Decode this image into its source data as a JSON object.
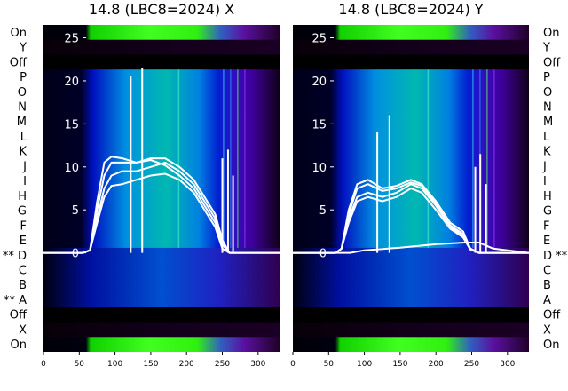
{
  "chart_data": [
    {
      "type": "heatmap",
      "title": "14.8 (LBC8=2024) X",
      "overlay": "line",
      "x_ticks": [
        0,
        50,
        100,
        150,
        200,
        250,
        300
      ],
      "xlim": [
        0,
        330
      ],
      "y_ticks": [
        0,
        5,
        10,
        15,
        20,
        25
      ],
      "ylim": [
        -11.5,
        26.5
      ],
      "row_labels": [
        "On",
        "Y",
        "Off",
        "P",
        "O",
        "N",
        "M",
        "L",
        "K",
        "J",
        "I",
        "H",
        "G",
        "F",
        "E",
        "** D",
        "C",
        "B",
        "** A",
        "Off",
        "X",
        "On"
      ],
      "series": [
        {
          "values": [
            [
              0,
              0
            ],
            [
              55,
              0
            ],
            [
              65,
              0.3
            ],
            [
              75,
              4
            ],
            [
              85,
              7.5
            ],
            [
              95,
              9
            ],
            [
              110,
              9.5
            ],
            [
              130,
              9.5
            ],
            [
              150,
              10
            ],
            [
              170,
              10.5
            ],
            [
              190,
              9.5
            ],
            [
              210,
              8
            ],
            [
              225,
              6
            ],
            [
              240,
              4
            ],
            [
              250,
              1
            ],
            [
              260,
              0
            ],
            [
              330,
              0
            ]
          ]
        },
        {
          "values": [
            [
              0,
              0
            ],
            [
              55,
              0
            ],
            [
              65,
              0.3
            ],
            [
              75,
              5
            ],
            [
              85,
              9
            ],
            [
              95,
              10.5
            ],
            [
              110,
              10.5
            ],
            [
              130,
              10.5
            ],
            [
              150,
              11
            ],
            [
              170,
              11
            ],
            [
              190,
              10
            ],
            [
              210,
              8.5
            ],
            [
              225,
              6.5
            ],
            [
              240,
              4.5
            ],
            [
              250,
              1.5
            ],
            [
              260,
              0
            ],
            [
              330,
              0
            ]
          ]
        },
        {
          "values": [
            [
              0,
              0
            ],
            [
              55,
              0
            ],
            [
              65,
              0.3
            ],
            [
              75,
              6
            ],
            [
              85,
              10.5
            ],
            [
              95,
              11.2
            ],
            [
              110,
              11
            ],
            [
              130,
              10.5
            ],
            [
              150,
              10.8
            ],
            [
              170,
              10.2
            ],
            [
              190,
              9
            ],
            [
              210,
              7.5
            ],
            [
              225,
              5.5
            ],
            [
              240,
              3.5
            ],
            [
              250,
              1
            ],
            [
              260,
              0
            ],
            [
              330,
              0
            ]
          ]
        },
        {
          "values": [
            [
              0,
              0
            ],
            [
              55,
              0
            ],
            [
              65,
              0.3
            ],
            [
              75,
              3.5
            ],
            [
              85,
              6.5
            ],
            [
              95,
              7.8
            ],
            [
              110,
              8
            ],
            [
              130,
              8.5
            ],
            [
              150,
              9
            ],
            [
              170,
              9.2
            ],
            [
              190,
              8.5
            ],
            [
              210,
              7
            ],
            [
              225,
              5
            ],
            [
              240,
              3
            ],
            [
              250,
              0.5
            ],
            [
              260,
              0
            ],
            [
              330,
              0
            ]
          ]
        }
      ]
    },
    {
      "type": "heatmap",
      "title": "14.8 (LBC8=2024) Y",
      "overlay": "line",
      "x_ticks": [
        0,
        50,
        100,
        150,
        200,
        250,
        300
      ],
      "xlim": [
        0,
        330
      ],
      "y_ticks": [
        0,
        5,
        10,
        15,
        20,
        25
      ],
      "ylim": [
        -11.5,
        26.5
      ],
      "row_labels": [
        "On",
        "Y",
        "Off",
        "P",
        "O",
        "N",
        "M",
        "L",
        "K",
        "J",
        "I",
        "H",
        "G",
        "F",
        "E",
        "D **",
        "C",
        "B",
        "A",
        "Off",
        "X",
        "On"
      ],
      "series": [
        {
          "values": [
            [
              0,
              0
            ],
            [
              60,
              0
            ],
            [
              68,
              0.5
            ],
            [
              78,
              4
            ],
            [
              90,
              6.5
            ],
            [
              105,
              7
            ],
            [
              125,
              6.5
            ],
            [
              145,
              7
            ],
            [
              165,
              8
            ],
            [
              180,
              7.5
            ],
            [
              200,
              5.5
            ],
            [
              220,
              3
            ],
            [
              238,
              2
            ],
            [
              248,
              0.5
            ],
            [
              260,
              0
            ],
            [
              330,
              0
            ]
          ]
        },
        {
          "values": [
            [
              0,
              0
            ],
            [
              60,
              0
            ],
            [
              68,
              0.5
            ],
            [
              78,
              5
            ],
            [
              90,
              8
            ],
            [
              105,
              8.5
            ],
            [
              125,
              7.5
            ],
            [
              145,
              7.8
            ],
            [
              165,
              8.5
            ],
            [
              180,
              8
            ],
            [
              200,
              6
            ],
            [
              220,
              3.5
            ],
            [
              238,
              2.5
            ],
            [
              248,
              0.5
            ],
            [
              260,
              0
            ],
            [
              330,
              0
            ]
          ]
        },
        {
          "values": [
            [
              0,
              0
            ],
            [
              60,
              0
            ],
            [
              68,
              0.5
            ],
            [
              78,
              3.5
            ],
            [
              90,
              6
            ],
            [
              105,
              6.5
            ],
            [
              125,
              6
            ],
            [
              145,
              6.5
            ],
            [
              165,
              7.5
            ],
            [
              180,
              7
            ],
            [
              200,
              5
            ],
            [
              220,
              2.8
            ],
            [
              238,
              1.8
            ],
            [
              248,
              0.4
            ],
            [
              260,
              0
            ],
            [
              330,
              0
            ]
          ]
        },
        {
          "values": [
            [
              0,
              0
            ],
            [
              60,
              0
            ],
            [
              68,
              0.5
            ],
            [
              78,
              4.5
            ],
            [
              90,
              7.5
            ],
            [
              105,
              8
            ],
            [
              125,
              7.2
            ],
            [
              145,
              7.5
            ],
            [
              165,
              8.2
            ],
            [
              180,
              7.8
            ],
            [
              200,
              5.8
            ],
            [
              220,
              3.2
            ],
            [
              238,
              2.2
            ],
            [
              248,
              0.5
            ],
            [
              260,
              0
            ],
            [
              330,
              0
            ]
          ]
        },
        {
          "values": [
            [
              0,
              0
            ],
            [
              80,
              0
            ],
            [
              100,
              0.3
            ],
            [
              150,
              0.6
            ],
            [
              200,
              1
            ],
            [
              240,
              1.2
            ],
            [
              260,
              1.2
            ],
            [
              280,
              0.5
            ],
            [
              300,
              0.3
            ],
            [
              330,
              0
            ]
          ]
        }
      ]
    }
  ]
}
